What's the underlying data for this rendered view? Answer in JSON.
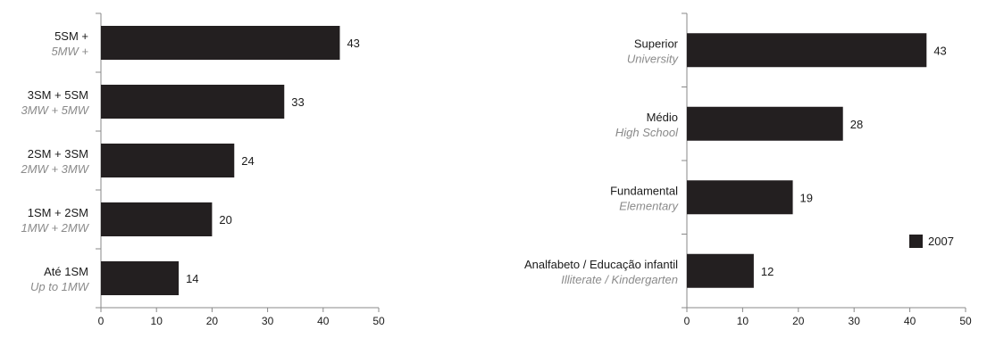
{
  "chart_data": [
    {
      "type": "bar",
      "orientation": "horizontal",
      "categories": [
        {
          "pt": "5SM +",
          "en": "5MW +"
        },
        {
          "pt": "3SM + 5SM",
          "en": "3MW + 5MW"
        },
        {
          "pt": "2SM + 3SM",
          "en": "2MW + 3MW"
        },
        {
          "pt": "1SM + 2SM",
          "en": "1MW + 2MW"
        },
        {
          "pt": "Até 1SM",
          "en": "Up to 1MW"
        }
      ],
      "values": [
        43,
        33,
        24,
        20,
        14
      ],
      "xlim": [
        0,
        50
      ],
      "xticks": [
        0,
        10,
        20,
        30,
        40,
        50
      ],
      "grid": false,
      "bar_color": "#231f20"
    },
    {
      "type": "bar",
      "orientation": "horizontal",
      "categories": [
        {
          "pt": "Superior",
          "en": "University"
        },
        {
          "pt": "Médio",
          "en": "High School"
        },
        {
          "pt": "Fundamental",
          "en": "Elementary"
        },
        {
          "pt": "Analfabeto / Educação infantil",
          "en": "Illiterate / Kindergarten"
        }
      ],
      "values": [
        43,
        28,
        19,
        12
      ],
      "xlim": [
        0,
        50
      ],
      "xticks": [
        0,
        10,
        20,
        30,
        40,
        50
      ],
      "grid": false,
      "bar_color": "#231f20",
      "legend": {
        "label": "2007",
        "placement": "right"
      }
    }
  ]
}
